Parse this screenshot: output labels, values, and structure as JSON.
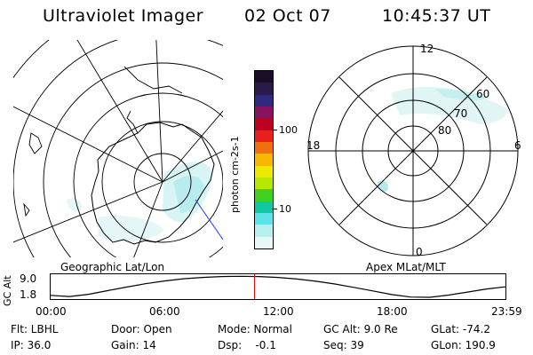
{
  "header": {
    "instrument": "Ultraviolet Imager",
    "date": "02 Oct 07",
    "time": "10:45:37 UT"
  },
  "geographic_panel": {
    "label": "Geographic Lat/Lon"
  },
  "apex_panel": {
    "label": "Apex  MLat/MLT",
    "mlt_labels": {
      "top": "12",
      "right": "6",
      "bottom": "0",
      "left": "18"
    },
    "mlat_labels": [
      "80",
      "70",
      "60"
    ]
  },
  "colorbar": {
    "label": "photon cm-2s-1",
    "ticks": [
      "100",
      "10"
    ],
    "colors": [
      "#1a0d26",
      "#2a1a4a",
      "#2e2a80",
      "#8a1060",
      "#c00020",
      "#e8201c",
      "#f07010",
      "#f8b800",
      "#f0e800",
      "#b8e800",
      "#40d020",
      "#10c8a0",
      "#60e0e8",
      "#b8f0f0",
      "#e8f8f8"
    ]
  },
  "altitude_plot": {
    "ylabel": "GC Alt",
    "yticks": [
      "9.0",
      "1.8"
    ],
    "xticks": [
      "00:00",
      "06:00",
      "12:00",
      "18:00",
      "23:59"
    ],
    "x": [
      0,
      1,
      2,
      3,
      4,
      5,
      6,
      7,
      8,
      9,
      10,
      11,
      12,
      13,
      14,
      15,
      16,
      17,
      18,
      19,
      20,
      21,
      22,
      23,
      24
    ],
    "y": [
      2.2,
      1.8,
      2.6,
      3.9,
      5.2,
      6.4,
      7.4,
      8.2,
      8.7,
      9.0,
      9.1,
      9.0,
      8.7,
      8.1,
      7.3,
      6.3,
      5.1,
      3.8,
      2.5,
      1.6,
      1.5,
      2.3,
      3.4,
      4.5,
      5.3
    ],
    "marker_hour": 10.76
  },
  "footer": {
    "flt": "Flt: LBHL",
    "ip": "IP: 36.0",
    "door": "Door: Open",
    "gain": "Gain: 14",
    "mode": "Mode: Normal",
    "dsp": "Dsp:    -0.1",
    "gcalt": "GC Alt: 9.0 Re",
    "seq": "Seq: 39",
    "glat": "GLat: -74.2",
    "glon": "GLon: 190.9"
  }
}
